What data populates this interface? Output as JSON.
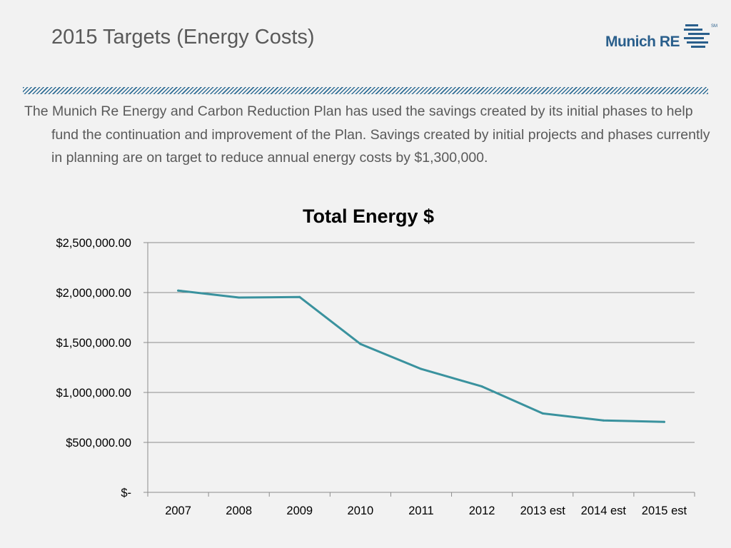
{
  "slide": {
    "title": "2015 Targets (Energy Costs)",
    "intro": "The Munich Re Energy and Carbon Reduction Plan has used the savings created by its initial phases to help fund the continuation and improvement of the Plan.  Savings created by initial projects and phases currently in planning are on target to reduce annual energy costs by $1,300,000."
  },
  "logo": {
    "name": "Munich RE",
    "mark": "SM"
  },
  "colors": {
    "line": "#3a929e",
    "grid": "#8c8c8c",
    "divider": "#2f6d95",
    "logo": "#2a5f8c"
  },
  "chart_data": {
    "type": "line",
    "title": "Total Energy $",
    "xlabel": "",
    "ylabel": "",
    "categories": [
      "2007",
      "2008",
      "2009",
      "2010",
      "2011",
      "2012",
      "2013 est",
      "2014 est",
      "2015 est"
    ],
    "series": [
      {
        "name": "Total Energy $",
        "values": [
          2020000,
          1950000,
          1955000,
          1485000,
          1235000,
          1060000,
          790000,
          720000,
          705000
        ]
      }
    ],
    "ylim": [
      0,
      2500000
    ],
    "yticks": [
      0,
      500000,
      1000000,
      1500000,
      2000000,
      2500000
    ],
    "ytick_labels": [
      "$-",
      "$500,000.00",
      "$1,000,000.00",
      "$1,500,000.00",
      "$2,000,000.00",
      "$2,500,000.00"
    ],
    "grid": true,
    "legend": "none"
  }
}
